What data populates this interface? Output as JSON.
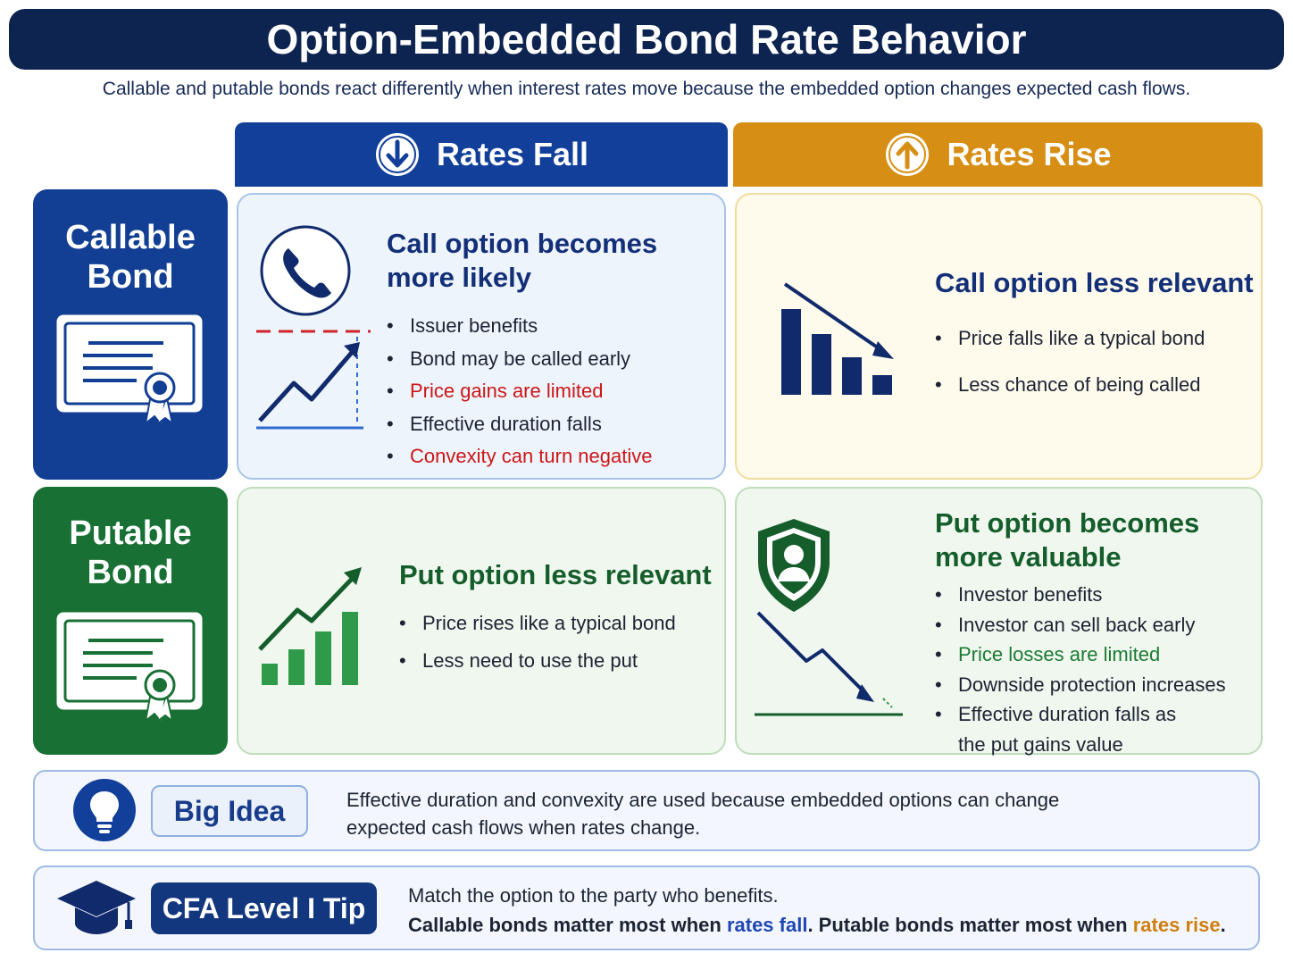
{
  "title": "Option-Embedded Bond Rate Behavior",
  "subtitle": "Callable and putable bonds react differently when interest rates move because the embedded option changes expected cash flows.",
  "columns": {
    "fall": {
      "label": "Rates Fall",
      "icon": "arrow-down-circle-icon",
      "color": "#123f99"
    },
    "rise": {
      "label": "Rates Rise",
      "icon": "arrow-up-circle-icon",
      "color": "#d68f14"
    }
  },
  "rows": {
    "callable": {
      "label_line1": "Callable",
      "label_line2": "Bond",
      "color": "#123f93"
    },
    "putable": {
      "label_line1": "Putable",
      "label_line2": "Bond",
      "color": "#187034"
    }
  },
  "cells": {
    "callable_fall": {
      "heading_line1": "Call option becomes",
      "heading_line2": "more likely",
      "bullets": [
        "Issuer benefits",
        "Bond may be called early",
        "Price gains are limited",
        "Effective duration falls",
        "Convexity can turn negative"
      ]
    },
    "callable_rise": {
      "heading": "Call option less relevant",
      "bullets": [
        "Price falls like a typical bond",
        "Less chance of being called"
      ]
    },
    "putable_fall": {
      "heading": "Put option less relevant",
      "bullets": [
        "Price rises like a typical bond",
        "Less need to use the put"
      ]
    },
    "putable_rise": {
      "heading_line1": "Put option becomes",
      "heading_line2": "more valuable",
      "bullets": [
        "Investor benefits",
        "Investor can sell back early",
        "Price losses are limited",
        "Downside protection increases",
        "Effective duration falls as",
        "the put gains value"
      ]
    }
  },
  "big_idea": {
    "label": "Big Idea",
    "line1": "Effective duration and convexity are used because embedded options can change",
    "line2": "expected cash flows when rates change."
  },
  "cfa_tip": {
    "label": "CFA Level I Tip",
    "line1": "Match the option to the party who benefits.",
    "line2_a": "Callable bonds matter most when ",
    "line2_b": "rates fall",
    "line2_c": ".  Putable bonds matter most when ",
    "line2_d": "rates rise",
    "line2_e": "."
  },
  "colors": {
    "navy": "#0d2350",
    "blue": "#123f99",
    "orange": "#d68f14",
    "green": "#187034",
    "red": "#cc1616"
  }
}
